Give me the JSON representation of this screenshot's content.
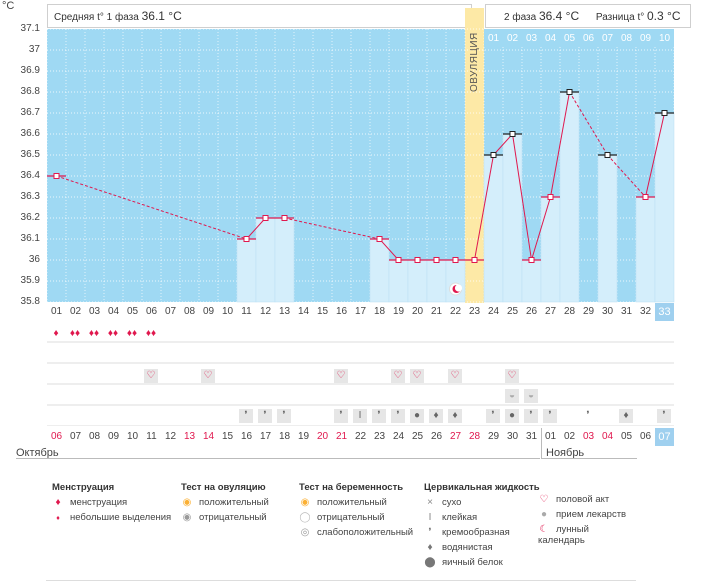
{
  "header": {
    "unit": "°C",
    "phase1_label": "Средняя t° 1 фаза",
    "phase1_value": "36.1 °C",
    "phase2_label": "2 фаза",
    "phase2_value": "36.4 °C",
    "diff_label": "Разница t°",
    "diff_value": "0.3 °C"
  },
  "ovulation_label": "ОВУЛЯЦИЯ",
  "colors": {
    "plot_bg": "#9fd9f3",
    "bar": "#d4eefb",
    "line": "#e0184e",
    "ovulation": "#fde9a6",
    "red_text": "#e0184e",
    "accent_tab": "#9fd0ef"
  },
  "chart_data": {
    "type": "line",
    "title": "",
    "xlabel": "",
    "ylabel": "°C",
    "ylim": [
      35.8,
      37.1
    ],
    "yticks": [
      "35.8",
      "35.9",
      "36",
      "36.1",
      "36.2",
      "36.3",
      "36.4",
      "36.5",
      "36.6",
      "36.7",
      "36.8",
      "36.9",
      "37",
      "37.1"
    ],
    "x": [
      "01",
      "02",
      "03",
      "04",
      "05",
      "06",
      "07",
      "08",
      "09",
      "10",
      "11",
      "12",
      "13",
      "14",
      "15",
      "16",
      "17",
      "18",
      "19",
      "20",
      "21",
      "22",
      "23",
      "24",
      "25",
      "26",
      "27",
      "28",
      "29",
      "30",
      "31",
      "32",
      "33"
    ],
    "series": [
      {
        "values": [
          36.4,
          null,
          null,
          null,
          null,
          null,
          null,
          null,
          null,
          null,
          36.1,
          36.2,
          36.2,
          null,
          null,
          null,
          null,
          36.1,
          36.0,
          36.0,
          36.0,
          36.0,
          36.0,
          36.5,
          36.6,
          36.0,
          36.3,
          36.8,
          null,
          36.5,
          null,
          36.3,
          36.7
        ]
      }
    ],
    "top_days": [
      "01",
      "02",
      "03",
      "04",
      "05",
      "06",
      "07",
      "08",
      "09",
      "10"
    ],
    "dates": [
      "06",
      "07",
      "08",
      "09",
      "10",
      "11",
      "12",
      "13",
      "14",
      "15",
      "16",
      "17",
      "18",
      "19",
      "20",
      "21",
      "22",
      "23",
      "24",
      "25",
      "26",
      "27",
      "28",
      "29",
      "30",
      "31",
      "01",
      "02",
      "03",
      "04",
      "05",
      "06",
      "07"
    ],
    "dates_red": [
      true,
      false,
      false,
      false,
      false,
      false,
      false,
      true,
      true,
      false,
      false,
      false,
      false,
      false,
      true,
      true,
      false,
      false,
      false,
      false,
      false,
      true,
      true,
      false,
      false,
      false,
      false,
      false,
      true,
      true,
      false,
      false,
      false
    ],
    "months": [
      "Октябрь",
      "Ноябрь"
    ]
  },
  "legend": {
    "menstruation": {
      "title": "Менструация",
      "items": [
        "менструация",
        "небольшие выделения"
      ]
    },
    "ovulation_test": {
      "title": "Тест на овуляцию",
      "items": [
        "положительный",
        "отрицательный"
      ]
    },
    "pregnancy_test": {
      "title": "Тест на беременность",
      "items": [
        "положительный",
        "отрицательный",
        "слабоположительный"
      ]
    },
    "cervical": {
      "title": "Цервикальная жидкость",
      "items": [
        "сухо",
        "клейкая",
        "кремообразная",
        "водянистая",
        "яичный белок"
      ]
    },
    "other": {
      "items": [
        "половой акт",
        "прием лекарств",
        "лунный календарь"
      ]
    }
  }
}
